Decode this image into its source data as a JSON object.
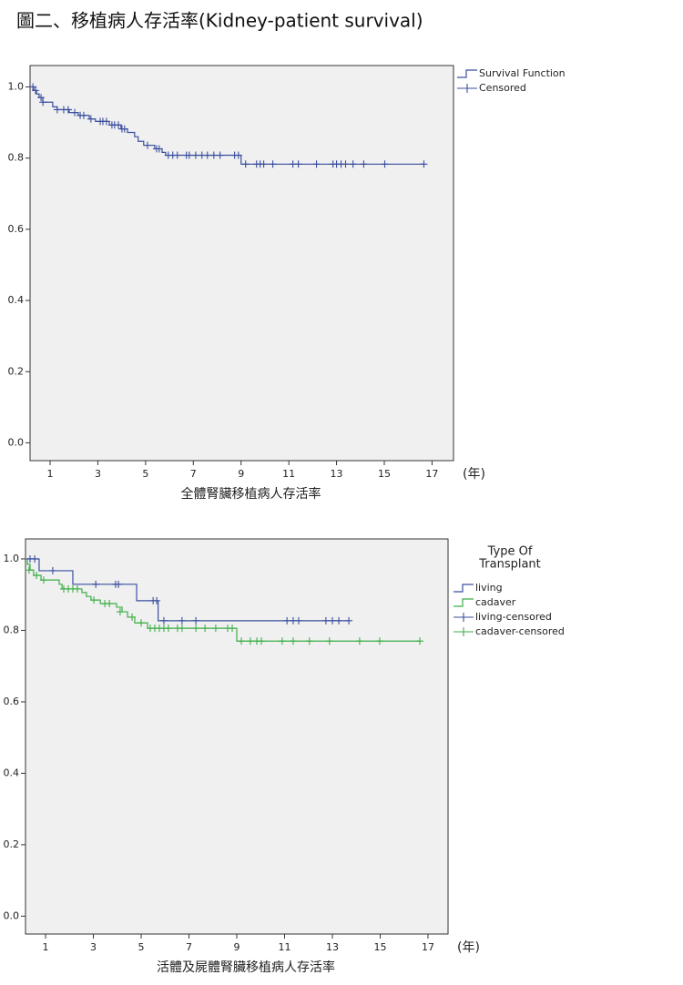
{
  "title": "圖二、移植病人存活率(Kidney-patient survival)",
  "chart_data": [
    {
      "type": "step",
      "x_label": "全體腎臟移植病人存活率",
      "x_unit": "(年)",
      "xlim": [
        0.16,
        17.9
      ],
      "ylim": [
        -0.05,
        1.06
      ],
      "xticks": [
        1,
        3,
        5,
        7,
        9,
        11,
        13,
        15,
        17
      ],
      "yticks": [
        {
          "value": 0,
          "label": "0.0"
        },
        0.2,
        0.4,
        0.6,
        0.8,
        {
          "value": 1,
          "label": "1.0"
        }
      ],
      "series": [
        {
          "name": "Survival Function",
          "mode": "step",
          "color": "#3b4f9e",
          "x": [
            0.2,
            0.31,
            0.43,
            0.54,
            0.69,
            1.11,
            1.3,
            1.8,
            2.18,
            2.64,
            2.9,
            3.48,
            3.97,
            4.24,
            4.54,
            4.69,
            4.92,
            5.38,
            5.69,
            5.84,
            9.0,
            16.66
          ],
          "values": [
            1.0,
            0.99,
            0.98,
            0.97,
            0.957,
            0.944,
            0.936,
            0.928,
            0.92,
            0.91,
            0.903,
            0.893,
            0.882,
            0.872,
            0.86,
            0.847,
            0.836,
            0.826,
            0.816,
            0.808,
            0.783,
            0.783
          ]
        },
        {
          "name": "Censored",
          "mode": "censored",
          "color": "#3b4f9e",
          "x": [
            0.28,
            0.39,
            0.62,
            0.7,
            1.3,
            1.57,
            1.76,
            2.03,
            2.26,
            2.41,
            2.71,
            3.1,
            3.21,
            3.36,
            3.59,
            3.7,
            3.86,
            4.01,
            4.12,
            5.08,
            5.46,
            5.57,
            5.95,
            6.14,
            6.33,
            6.71,
            6.83,
            7.1,
            7.36,
            7.59,
            7.86,
            8.12,
            8.73,
            8.89,
            9.19,
            9.65,
            9.8,
            9.95,
            10.33,
            11.17,
            11.4,
            12.16,
            12.85,
            13.0,
            13.19,
            13.38,
            13.69,
            14.14,
            15.02,
            16.66
          ],
          "values": [
            1.0,
            0.99,
            0.97,
            0.957,
            0.936,
            0.936,
            0.936,
            0.928,
            0.92,
            0.92,
            0.91,
            0.903,
            0.903,
            0.903,
            0.893,
            0.893,
            0.893,
            0.882,
            0.882,
            0.836,
            0.826,
            0.826,
            0.808,
            0.808,
            0.808,
            0.808,
            0.808,
            0.808,
            0.808,
            0.808,
            0.808,
            0.808,
            0.808,
            0.808,
            0.783,
            0.783,
            0.783,
            0.783,
            0.783,
            0.783,
            0.783,
            0.783,
            0.783,
            0.783,
            0.783,
            0.783,
            0.783,
            0.783,
            0.783,
            0.783
          ]
        }
      ]
    },
    {
      "type": "step",
      "x_label": "活體及屍體腎臟移植病人存活率",
      "x_unit": "(年)",
      "legend_title": [
        "Type Of",
        "Transplant"
      ],
      "xlim": [
        0.16,
        17.84
      ],
      "ylim": [
        -0.05,
        1.056
      ],
      "xticks": [
        1,
        3,
        5,
        7,
        9,
        11,
        13,
        15,
        17
      ],
      "yticks": [
        {
          "value": 0,
          "label": "0.0"
        },
        0.2,
        0.4,
        0.6,
        0.8,
        {
          "value": 1,
          "label": "1.0"
        }
      ],
      "series": [
        {
          "name": "living",
          "mode": "step",
          "color": "#3b4f9e",
          "x": [
            0.2,
            0.73,
            2.14,
            4.81,
            5.71,
            13.69
          ],
          "values": [
            1.0,
            0.967,
            0.929,
            0.883,
            0.827,
            0.827
          ]
        },
        {
          "name": "cadaver",
          "mode": "step",
          "color": "#3cae46",
          "x": [
            0.2,
            0.24,
            0.35,
            0.5,
            0.81,
            1.57,
            1.69,
            2.52,
            2.71,
            2.9,
            3.29,
            3.97,
            4.2,
            4.43,
            4.73,
            5.27,
            9.0,
            16.66
          ],
          "values": [
            1.0,
            0.985,
            0.969,
            0.954,
            0.941,
            0.929,
            0.916,
            0.906,
            0.895,
            0.885,
            0.875,
            0.865,
            0.852,
            0.837,
            0.821,
            0.806,
            0.77,
            0.77
          ]
        },
        {
          "name": "living-censored",
          "mode": "censored",
          "color": "#3b4f9e",
          "x": [
            0.35,
            0.545,
            1.3,
            3.1,
            3.93,
            4.05,
            5.5,
            5.65,
            5.95,
            6.71,
            7.29,
            11.1,
            11.36,
            11.59,
            12.73,
            13.0,
            13.27,
            13.69
          ],
          "values": [
            1.0,
            1.0,
            0.967,
            0.929,
            0.929,
            0.929,
            0.883,
            0.883,
            0.827,
            0.827,
            0.827,
            0.827,
            0.827,
            0.827,
            0.827,
            0.827,
            0.827,
            0.827
          ]
        },
        {
          "name": "cadaver-censored",
          "mode": "censored",
          "color": "#3cae46",
          "x": [
            0.31,
            0.62,
            0.92,
            1.76,
            1.95,
            2.14,
            2.33,
            3.02,
            3.48,
            3.67,
            4.12,
            4.62,
            5.0,
            5.38,
            5.57,
            5.76,
            5.95,
            6.14,
            6.52,
            6.71,
            7.29,
            7.67,
            8.12,
            8.62,
            8.81,
            9.19,
            9.57,
            9.84,
            10.03,
            10.9,
            11.36,
            12.04,
            12.88,
            14.14,
            14.98,
            16.66
          ],
          "values": [
            0.969,
            0.954,
            0.941,
            0.916,
            0.916,
            0.916,
            0.916,
            0.885,
            0.875,
            0.875,
            0.852,
            0.837,
            0.821,
            0.806,
            0.806,
            0.806,
            0.806,
            0.806,
            0.806,
            0.806,
            0.806,
            0.806,
            0.806,
            0.806,
            0.806,
            0.77,
            0.77,
            0.77,
            0.77,
            0.77,
            0.77,
            0.77,
            0.77,
            0.77,
            0.77,
            0.77
          ]
        }
      ]
    }
  ]
}
